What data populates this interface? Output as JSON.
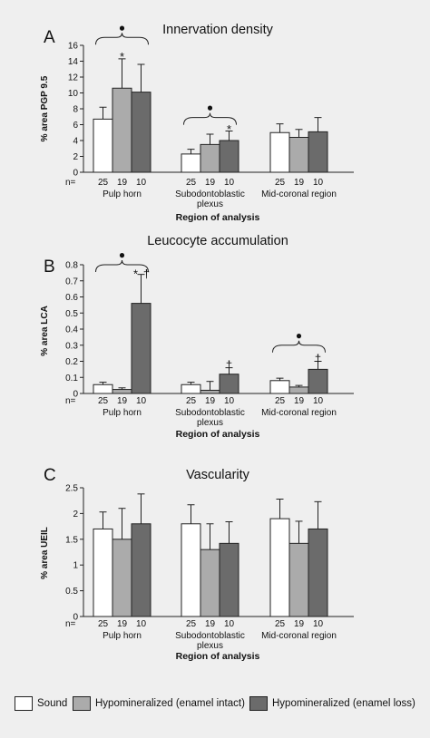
{
  "colors": {
    "sound": "#ffffff",
    "intact": "#ababab",
    "loss": "#6b6b6b",
    "background": "#efefef",
    "bar_border": "#222222"
  },
  "legend": [
    {
      "label": "Sound",
      "color": "#ffffff"
    },
    {
      "label": "Hypomineralized (enamel intact)",
      "color": "#ababab"
    },
    {
      "label": "Hypomineralized (enamel loss)",
      "color": "#6b6b6b"
    }
  ],
  "chart_data": [
    {
      "panel": "A",
      "type": "bar",
      "title": "Innervation density",
      "ylabel": "% area PGP 9.5",
      "xlabel": "Region of analysis",
      "ylim": [
        0,
        16
      ],
      "yticks": [
        "0",
        "2",
        "4",
        "6",
        "8",
        "10",
        "12",
        "14",
        "16"
      ],
      "n_label": "n=",
      "n_values": [
        "25",
        "19",
        "10"
      ],
      "categories": [
        "Pulp horn",
        "Subodontoblastic\nplexus",
        "Mid-coronal region"
      ],
      "series": [
        {
          "values": [
            6.7,
            2.3,
            5.0
          ],
          "errors": [
            1.5,
            0.6,
            1.1
          ]
        },
        {
          "values": [
            10.6,
            3.5,
            4.4
          ],
          "errors": [
            3.7,
            1.3,
            1.0
          ]
        },
        {
          "values": [
            10.1,
            4.0,
            5.1
          ],
          "errors": [
            3.5,
            1.2,
            1.8
          ]
        }
      ],
      "annotations": [
        {
          "symbol": "●",
          "bracket_group": 0,
          "bracket_y": 17.0,
          "bracket_span": [
            0,
            2
          ]
        },
        {
          "symbol": "*",
          "group": 0,
          "series": 1,
          "y": 14.5
        },
        {
          "symbol": "●",
          "bracket_group": 1,
          "bracket_y": 6.9,
          "bracket_span": [
            0,
            2
          ]
        },
        {
          "symbol": "*",
          "group": 1,
          "series": 2,
          "y": 5.4
        }
      ]
    },
    {
      "panel": "B",
      "type": "bar",
      "title": "Leucocyte accumulation",
      "ylabel": "% area LCA",
      "xlabel": "Region of analysis",
      "ylim": [
        0,
        0.8
      ],
      "yticks": [
        "0",
        "0.1",
        "0.2",
        "0.3",
        "0.4",
        "0.5",
        "0.6",
        "0.7",
        "0.8"
      ],
      "n_label": "n=",
      "n_values": [
        "25",
        "19",
        "10"
      ],
      "categories": [
        "Pulp horn",
        "Subodontoblastic\nplexus",
        "Mid-coronal region"
      ],
      "series": [
        {
          "values": [
            0.055,
            0.055,
            0.08
          ],
          "errors": [
            0.015,
            0.015,
            0.015
          ]
        },
        {
          "values": [
            0.025,
            0.02,
            0.04
          ],
          "errors": [
            0.01,
            0.055,
            0.01
          ]
        },
        {
          "values": [
            0.56,
            0.12,
            0.15
          ],
          "errors": [
            0.18,
            0.04,
            0.05
          ]
        }
      ],
      "annotations": [
        {
          "symbol": "●",
          "bracket_group": 0,
          "bracket_y": 0.8,
          "bracket_span": [
            0,
            2
          ]
        },
        {
          "symbol": "*",
          "group": 0,
          "series": 2,
          "y": 0.74,
          "dx": -6
        },
        {
          "symbol": "†",
          "group": 0,
          "series": 2,
          "y": 0.74,
          "dx": 6
        },
        {
          "symbol": "†",
          "group": 1,
          "series": 2,
          "y": 0.175
        },
        {
          "symbol": "●",
          "bracket_group": 2,
          "bracket_y": 0.3,
          "bracket_span": [
            0,
            2
          ]
        },
        {
          "symbol": "†",
          "group": 2,
          "series": 2,
          "y": 0.215
        }
      ]
    },
    {
      "panel": "C",
      "type": "bar",
      "title": "Vascularity",
      "ylabel": "% area UEIL",
      "xlabel": "Region of analysis",
      "ylim": [
        0,
        2.5
      ],
      "yticks": [
        "0",
        "0.5",
        "1",
        "1.5",
        "2",
        "2.5"
      ],
      "n_label": "n=",
      "n_values": [
        "25",
        "19",
        "10"
      ],
      "categories": [
        "Pulp horn",
        "Subodontoblastic\nplexus",
        "Mid-coronal region"
      ],
      "series": [
        {
          "values": [
            1.7,
            1.8,
            1.9
          ],
          "errors": [
            0.33,
            0.37,
            0.38
          ]
        },
        {
          "values": [
            1.5,
            1.3,
            1.42
          ],
          "errors": [
            0.6,
            0.5,
            0.43
          ]
        },
        {
          "values": [
            1.8,
            1.42,
            1.7
          ],
          "errors": [
            0.58,
            0.42,
            0.53
          ]
        }
      ],
      "annotations": []
    }
  ]
}
